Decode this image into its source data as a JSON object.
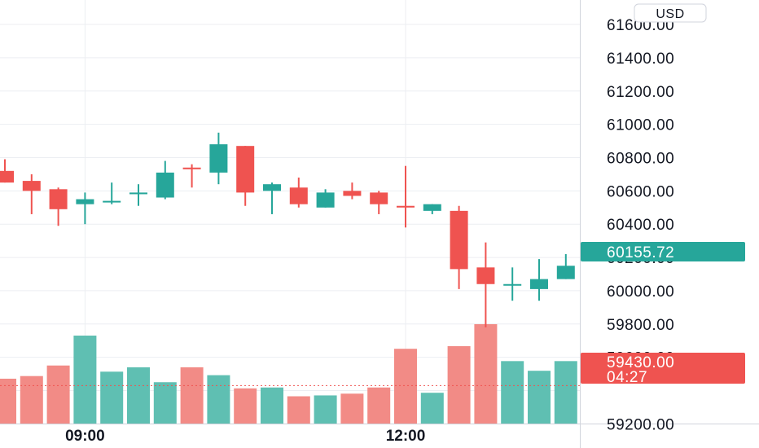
{
  "currency_label": "USD",
  "colors": {
    "up": "#26a69a",
    "down": "#ef5350",
    "volume_up": "#5fbfb2",
    "volume_down": "#f28b86",
    "grid": "#eceef2",
    "axis_line": "#d1d4dc",
    "text": "#131722"
  },
  "current_price": {
    "label": "60155.72",
    "value": 60155.72
  },
  "crosshair_price": {
    "label": "59430.00",
    "countdown": "04:27",
    "value": 59430.0
  },
  "chart_data": {
    "type": "candlestick",
    "y_axis": {
      "ticks": [
        61600,
        61400,
        61200,
        61000,
        60800,
        60600,
        60400,
        60200,
        60000,
        59800,
        59600,
        59200
      ],
      "tick_labels": [
        "61600.00",
        "61400.00",
        "61200.00",
        "61000.00",
        "60800.00",
        "60600.00",
        "60400.00",
        "60200.00",
        "60000.00",
        "59800.00",
        "59600.00",
        "59200.00"
      ],
      "range": [
        59055,
        61747
      ]
    },
    "x_axis": {
      "tick_labels": [
        "09:00",
        "12:00"
      ],
      "tick_candle_index": [
        3,
        15
      ]
    },
    "candles": [
      {
        "open": 60720,
        "high": 60790,
        "low": 60650,
        "close": 60650
      },
      {
        "open": 60660,
        "high": 60700,
        "low": 60460,
        "close": 60600
      },
      {
        "open": 60610,
        "high": 60620,
        "low": 60390,
        "close": 60490
      },
      {
        "open": 60520,
        "high": 60590,
        "low": 60400,
        "close": 60550
      },
      {
        "open": 60540,
        "high": 60650,
        "low": 60520,
        "close": 60540
      },
      {
        "open": 60580,
        "high": 60640,
        "low": 60510,
        "close": 60590
      },
      {
        "open": 60560,
        "high": 60780,
        "low": 60550,
        "close": 60710
      },
      {
        "open": 60740,
        "high": 60760,
        "low": 60620,
        "close": 60730
      },
      {
        "open": 60710,
        "high": 60950,
        "low": 60640,
        "close": 60880
      },
      {
        "open": 60870,
        "high": 60870,
        "low": 60510,
        "close": 60590
      },
      {
        "open": 60600,
        "high": 60650,
        "low": 60460,
        "close": 60640
      },
      {
        "open": 60620,
        "high": 60680,
        "low": 60500,
        "close": 60520
      },
      {
        "open": 60500,
        "high": 60610,
        "low": 60500,
        "close": 60590
      },
      {
        "open": 60600,
        "high": 60650,
        "low": 60550,
        "close": 60570
      },
      {
        "open": 60590,
        "high": 60600,
        "low": 60460,
        "close": 60520
      },
      {
        "open": 60510,
        "high": 60750,
        "low": 60380,
        "close": 60500
      },
      {
        "open": 60480,
        "high": 60520,
        "low": 60460,
        "close": 60520
      },
      {
        "open": 60480,
        "high": 60510,
        "low": 60010,
        "close": 60130
      },
      {
        "open": 60140,
        "high": 60290,
        "low": 59780,
        "close": 60040
      },
      {
        "open": 60040,
        "high": 60140,
        "low": 59940,
        "close": 60040
      },
      {
        "open": 60010,
        "high": 60190,
        "low": 59940,
        "close": 60070
      },
      {
        "open": 60070,
        "high": 60220,
        "low": 60070,
        "close": 60150
      }
    ],
    "volume_relative": [
      0.51,
      0.54,
      0.66,
      1.0,
      0.59,
      0.64,
      0.47,
      0.64,
      0.55,
      0.4,
      0.41,
      0.31,
      0.32,
      0.34,
      0.41,
      0.85,
      0.35,
      0.88,
      1.13,
      0.71,
      0.6,
      0.71
    ]
  }
}
